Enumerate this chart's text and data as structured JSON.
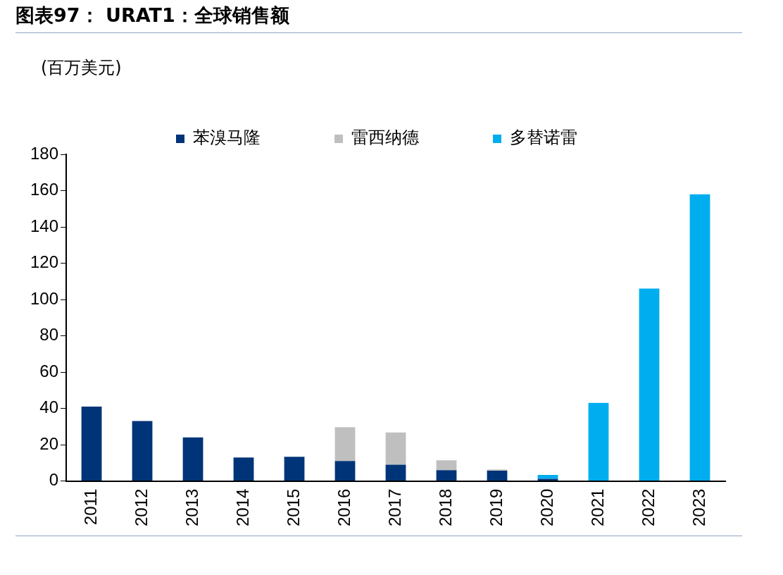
{
  "chart_data": {
    "type": "bar",
    "title": "图表97： URAT1：全球销售额",
    "ylabel": "(百万美元)",
    "categories": [
      "2011",
      "2012",
      "2013",
      "2014",
      "2015",
      "2016",
      "2017",
      "2018",
      "2019",
      "2020",
      "2021",
      "2022",
      "2023"
    ],
    "stacked": true,
    "series": [
      {
        "name": "苯溴马隆",
        "color": "#003478",
        "values": [
          41,
          33,
          24,
          13,
          13.3,
          11,
          9,
          6,
          5.7,
          1.2,
          null,
          null,
          null
        ]
      },
      {
        "name": "雷西纳德",
        "color": "#bfbfbf",
        "values": [
          null,
          null,
          null,
          null,
          null,
          18.6,
          17.7,
          5.4,
          0.7,
          null,
          null,
          null,
          null
        ]
      },
      {
        "name": "多替诺雷",
        "color": "#00adef",
        "values": [
          null,
          null,
          null,
          null,
          null,
          null,
          null,
          null,
          null,
          2.1,
          43,
          106,
          158
        ]
      }
    ],
    "ylim": [
      0,
      180
    ],
    "yticks": [
      0,
      20,
      40,
      60,
      80,
      100,
      120,
      140,
      160,
      180
    ],
    "grid": false,
    "legend": "top"
  }
}
